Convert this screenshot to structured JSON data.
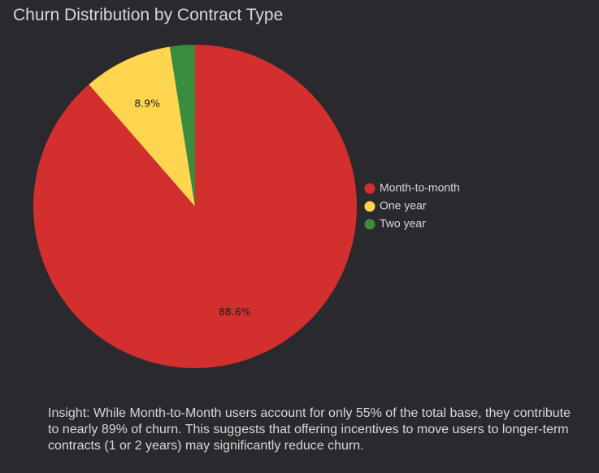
{
  "chart_data": {
    "type": "pie",
    "title": "Churn Distribution by Contract Type",
    "slices": [
      {
        "name": "Month-to-month",
        "value": 88.6,
        "label": "88.6%",
        "color": "#d32f2f"
      },
      {
        "name": "One year",
        "value": 8.9,
        "label": "8.9%",
        "color": "#fdd54f"
      },
      {
        "name": "Two year",
        "value": 2.5,
        "label": "",
        "color": "#388e3c"
      }
    ],
    "legend_position": "right"
  },
  "insight": "Insight: While Month-to-Month users account for only 55% of the total base, they contribute to nearly 89% of churn. This suggests that offering incentives to move users to longer-term contracts (1 or 2 years) may significantly reduce churn."
}
